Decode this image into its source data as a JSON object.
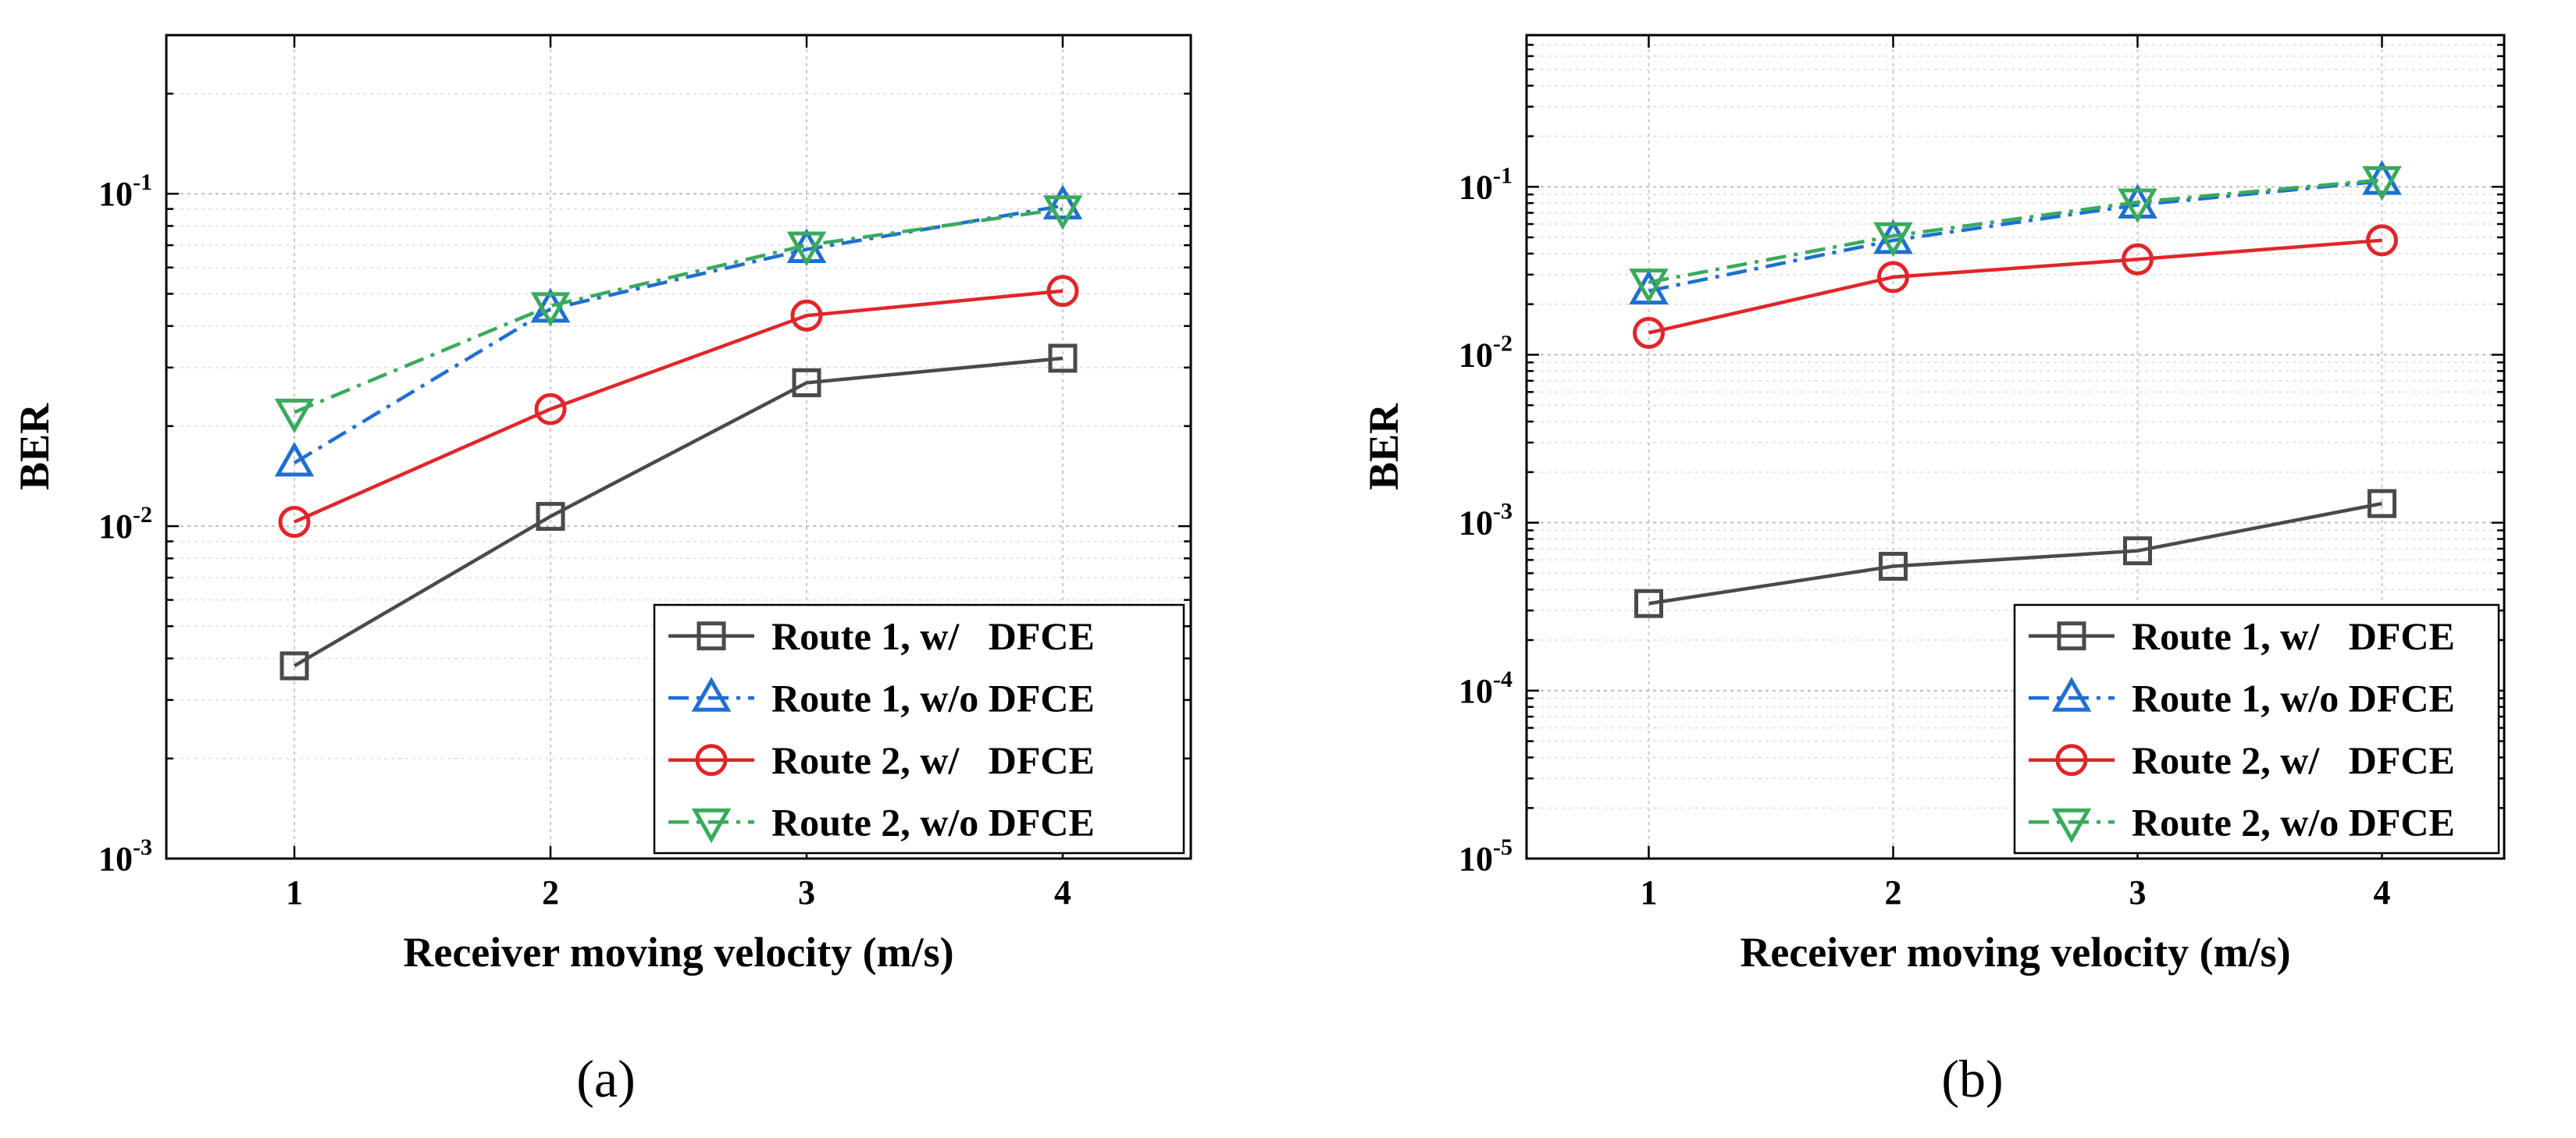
{
  "figure": {
    "panels": [
      {
        "label": "(a)"
      },
      {
        "label": "(b)"
      }
    ]
  },
  "colors": {
    "route1_w": "#4a4a4a",
    "route1_wo": "#1f6fd1",
    "route2_w": "#e0262a",
    "route2_wo": "#3aaa5c"
  },
  "chart_data": [
    {
      "type": "line",
      "panel": "(a)",
      "xlabel": "Receiver moving velocity (m/s)",
      "ylabel": "BER",
      "yscale": "log",
      "xlim": [
        0.5,
        4.5
      ],
      "ylim": [
        0.001,
        0.3
      ],
      "x": [
        1,
        2,
        3,
        4
      ],
      "xticks": [
        "1",
        "2",
        "3",
        "4"
      ],
      "yticks": [
        {
          "value": 0.001,
          "base": "10",
          "exp": "-3"
        },
        {
          "value": 0.01,
          "base": "10",
          "exp": "-2"
        },
        {
          "value": 0.1,
          "base": "10",
          "exp": "-1"
        }
      ],
      "grid": true,
      "legend_position": "bottom-right",
      "series": [
        {
          "name": "Route 1, w/   DFCE",
          "values": [
            0.0038,
            0.0107,
            0.027,
            0.032
          ],
          "marker": "square",
          "dash": "solid",
          "color": "#4a4a4a"
        },
        {
          "name": "Route 1, w/o DFCE",
          "values": [
            0.0155,
            0.045,
            0.068,
            0.092
          ],
          "marker": "triangle-up",
          "dash": "dashdot",
          "color": "#1f6fd1"
        },
        {
          "name": "Route 2, w/   DFCE",
          "values": [
            0.0103,
            0.0225,
            0.043,
            0.051
          ],
          "marker": "circle",
          "dash": "solid",
          "color": "#e0262a"
        },
        {
          "name": "Route 2, w/o DFCE",
          "values": [
            0.022,
            0.046,
            0.07,
            0.09
          ],
          "marker": "triangle-down",
          "dash": "dashdot",
          "color": "#3aaa5c"
        }
      ]
    },
    {
      "type": "line",
      "panel": "(b)",
      "xlabel": "Receiver moving velocity (m/s)",
      "ylabel": "BER",
      "yscale": "log",
      "xlim": [
        0.5,
        4.5
      ],
      "ylim": [
        1e-05,
        0.8
      ],
      "x": [
        1,
        2,
        3,
        4
      ],
      "xticks": [
        "1",
        "2",
        "3",
        "4"
      ],
      "yticks": [
        {
          "value": 1e-05,
          "base": "10",
          "exp": "-5"
        },
        {
          "value": 0.0001,
          "base": "10",
          "exp": "-4"
        },
        {
          "value": 0.001,
          "base": "10",
          "exp": "-3"
        },
        {
          "value": 0.01,
          "base": "10",
          "exp": "-2"
        },
        {
          "value": 0.1,
          "base": "10",
          "exp": "-1"
        }
      ],
      "grid": true,
      "legend_position": "bottom-right",
      "series": [
        {
          "name": "Route 1, w/   DFCE",
          "values": [
            0.00033,
            0.00055,
            0.00068,
            0.0013
          ],
          "marker": "square",
          "dash": "solid",
          "color": "#4a4a4a"
        },
        {
          "name": "Route 1, w/o DFCE",
          "values": [
            0.024,
            0.048,
            0.078,
            0.108
          ],
          "marker": "triangle-up",
          "dash": "dashdot",
          "color": "#1f6fd1"
        },
        {
          "name": "Route 2, w/   DFCE",
          "values": [
            0.0135,
            0.029,
            0.037,
            0.048
          ],
          "marker": "circle",
          "dash": "solid",
          "color": "#e0262a"
        },
        {
          "name": "Route 2, w/o DFCE",
          "values": [
            0.027,
            0.051,
            0.081,
            0.11
          ],
          "marker": "triangle-down",
          "dash": "dashdot",
          "color": "#3aaa5c"
        }
      ]
    }
  ]
}
